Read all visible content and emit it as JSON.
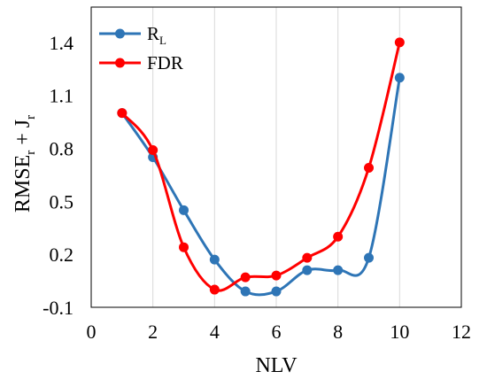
{
  "chart_data": {
    "type": "line",
    "xlabel": "NLV",
    "ylabel": {
      "base": "RMSE",
      "sub1": "r",
      "plus": " + J",
      "sub2": "r"
    },
    "xlim": [
      0,
      12
    ],
    "ylim": [
      -0.1,
      1.6
    ],
    "x_ticks": [
      "0",
      "2",
      "4",
      "6",
      "8",
      "10",
      "12"
    ],
    "y_ticks": [
      "-0.1",
      "0.2",
      "0.5",
      "0.8",
      "1.1",
      "1.4"
    ],
    "x_tick_values": [
      0,
      2,
      4,
      6,
      8,
      10,
      12
    ],
    "y_tick_values": [
      -0.1,
      0.2,
      0.5,
      0.8,
      1.1,
      1.4
    ],
    "grid": "vertical",
    "legend_placement": "top-left",
    "series": [
      {
        "name": {
          "base": "R",
          "sub": "L"
        },
        "color": "#2E75B6",
        "x": [
          1,
          2,
          3,
          4,
          5,
          6,
          7,
          8,
          9,
          10
        ],
        "values": [
          1.0,
          0.75,
          0.45,
          0.17,
          -0.01,
          -0.01,
          0.11,
          0.11,
          0.18,
          1.2
        ]
      },
      {
        "name": {
          "base": "FDR"
        },
        "color": "#FF0000",
        "x": [
          1,
          2,
          3,
          4,
          5,
          6,
          7,
          8,
          9,
          10
        ],
        "values": [
          1.0,
          0.79,
          0.24,
          0.0,
          0.07,
          0.08,
          0.18,
          0.3,
          0.69,
          1.4
        ]
      }
    ]
  }
}
